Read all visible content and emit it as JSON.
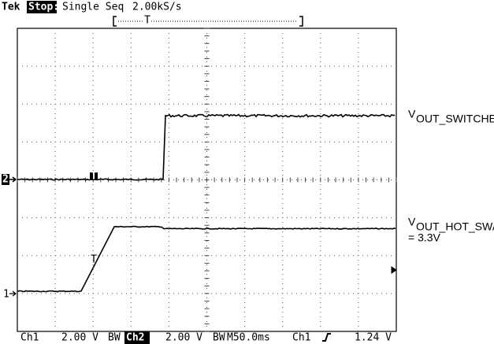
{
  "header": {
    "brand": "Tek",
    "status": "Stop:",
    "mode": "Single Seq",
    "sample_rate": "2.00kS/s"
  },
  "footer": {
    "ch1_label": "Ch1",
    "ch1_scale": "2.00 V",
    "bandwidth_limit": "BW",
    "ch2_label": "Ch2",
    "ch2_scale": "2.00 V",
    "timebase": "M50.0ms",
    "trigger_source": "Ch1",
    "trigger_level": "1.24 V"
  },
  "labels": {
    "switcher": {
      "main": "V",
      "sub": "OUT_SWITCHER"
    },
    "hot_swap": {
      "main": "V",
      "sub": "OUT_HOT_SWAP",
      "note": "= 3.3V"
    }
  },
  "markers": {
    "ch2": "2",
    "ch1": "1",
    "trigger": "T"
  }
}
